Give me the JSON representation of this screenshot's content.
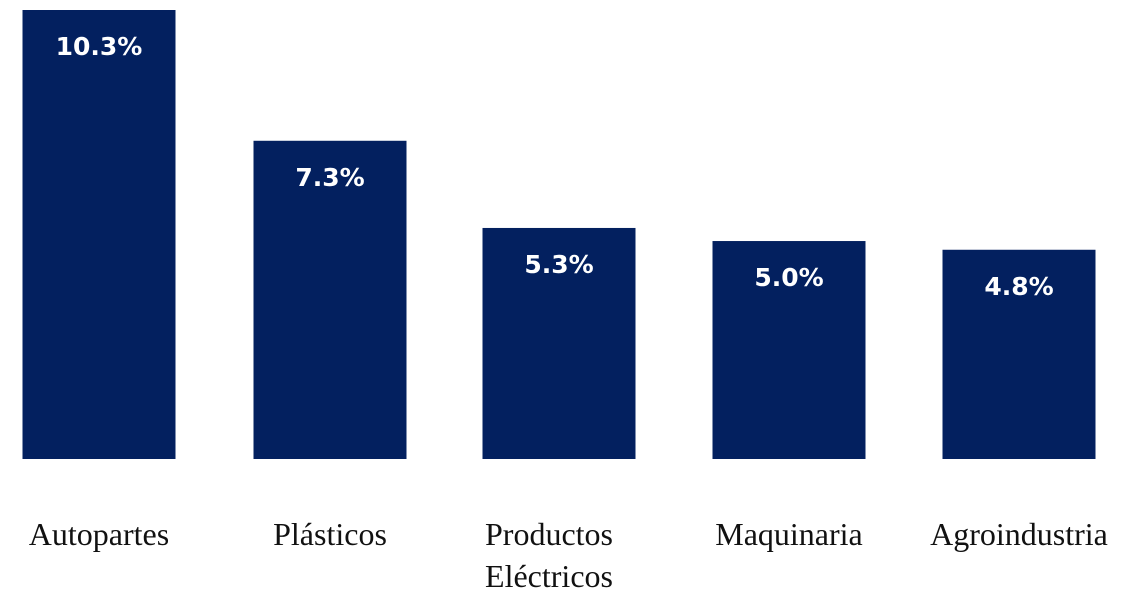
{
  "chart_data": {
    "type": "bar",
    "categories": [
      [
        "Autopartes"
      ],
      [
        "Plásticos"
      ],
      [
        "Productos",
        "Eléctricos"
      ],
      [
        "Maquinaria"
      ],
      [
        "Agroindustria"
      ]
    ],
    "values": [
      10.3,
      7.3,
      5.3,
      5.0,
      4.8
    ],
    "value_labels": [
      "10.3%",
      "7.3%",
      "5.3%",
      "5.0%",
      "4.8%"
    ],
    "title": "",
    "xlabel": "",
    "ylabel": "",
    "ylim": [
      0,
      10.3
    ],
    "grid": false,
    "legend": "none",
    "colors": {
      "bar": "#03205f",
      "value_text": "#ffffff",
      "category_text": "#111111"
    }
  }
}
